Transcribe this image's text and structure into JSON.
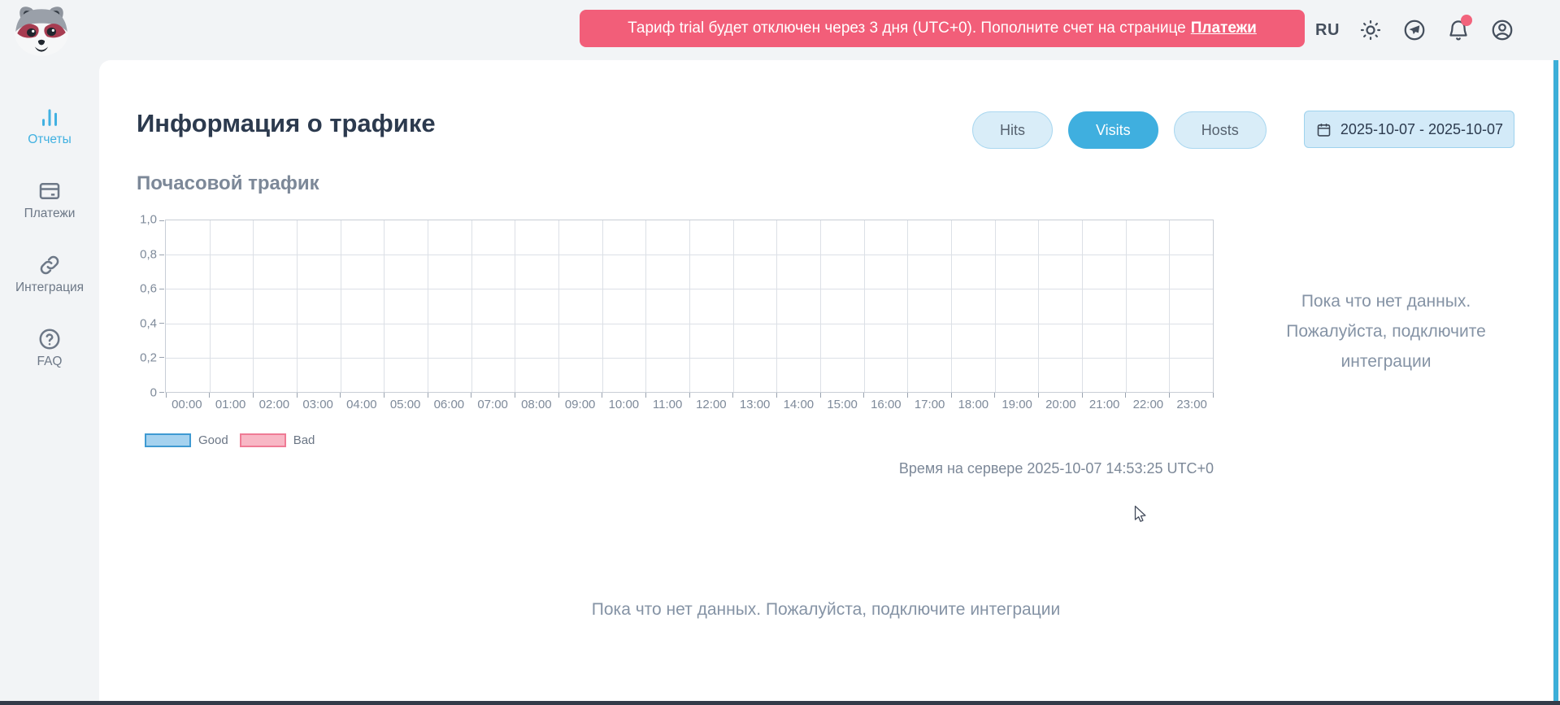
{
  "colors": {
    "header_bg": "#f2f4f6",
    "accent_blue": "#3fafdf",
    "pill_bg": "#d9edf8",
    "pill_border": "#abd8f0",
    "date_bg": "#d3eaf8",
    "date_border": "#9ed2ee",
    "banner_pink": "#f25e79",
    "text_dark": "#2c3a4e",
    "text_gray": "#7e8a9a",
    "text_mid": "#56626f",
    "sidebar_gray": "#6d7887",
    "sidebar_active": "#41b1e1",
    "grid_line": "#dce0e6",
    "plot_border": "#c8ced6",
    "tick": "#9aa3b0",
    "legend_good_fill": "#a5d2ef",
    "legend_good_border": "#3f9ad2",
    "legend_bad_fill": "#f8b7c5",
    "legend_bad_border": "#ef7b95",
    "scrollbar_blue": "#3caed8",
    "bottom_bar": "#333b49",
    "badge_red": "#f2637c",
    "icon_dark": "#454f5d"
  },
  "header": {
    "banner": {
      "text_before": "Тариф trial будет отключен через 3 дня (UTC+0). Пополните счет на странице",
      "link_label": "Платежи"
    },
    "language": "RU",
    "icons": [
      "theme-sun-icon",
      "telegram-icon",
      "notifications-bell-icon",
      "profile-icon"
    ],
    "notification_badge": true
  },
  "sidebar": {
    "items": [
      {
        "key": "reports",
        "label": "Отчеты",
        "icon": "bar-chart-icon",
        "active": true
      },
      {
        "key": "payments",
        "label": "Платежи",
        "icon": "credit-card-icon",
        "active": false
      },
      {
        "key": "integration",
        "label": "Интеграция",
        "icon": "link-icon",
        "active": false
      },
      {
        "key": "faq",
        "label": "FAQ",
        "icon": "question-icon",
        "active": false
      }
    ]
  },
  "main": {
    "title": "Информация о трафике",
    "section_title": "Почасовой трафик",
    "toggles": [
      {
        "label": "Hits",
        "active": false
      },
      {
        "label": "Visits",
        "active": true
      },
      {
        "label": "Hosts",
        "active": false
      }
    ],
    "date_range": "2025-10-07 - 2025-10-07",
    "server_time": "Время на сервере 2025-10-07 14:53:25 UTC+0",
    "empty_side_lines": [
      "Пока что нет данных.",
      "Пожалуйста, подключите",
      "интеграции"
    ],
    "empty_bottom_message": "Пока что нет данных. Пожалуйста, подключите интеграции"
  },
  "chart_data": {
    "type": "bar",
    "title": "Почасовой трафик",
    "categories": [
      "00:00",
      "01:00",
      "02:00",
      "03:00",
      "04:00",
      "05:00",
      "06:00",
      "07:00",
      "08:00",
      "09:00",
      "10:00",
      "11:00",
      "12:00",
      "13:00",
      "14:00",
      "15:00",
      "16:00",
      "17:00",
      "18:00",
      "19:00",
      "20:00",
      "21:00",
      "22:00",
      "23:00"
    ],
    "series": [
      {
        "name": "Good",
        "values": []
      },
      {
        "name": "Bad",
        "values": []
      }
    ],
    "y_tick_labels": [
      "1,0",
      "0,8",
      "0,6",
      "0,4",
      "0,2",
      "0"
    ],
    "ylim": [
      0,
      1
    ],
    "grid": true,
    "legend_position": "bottom-left",
    "no_data": true
  }
}
